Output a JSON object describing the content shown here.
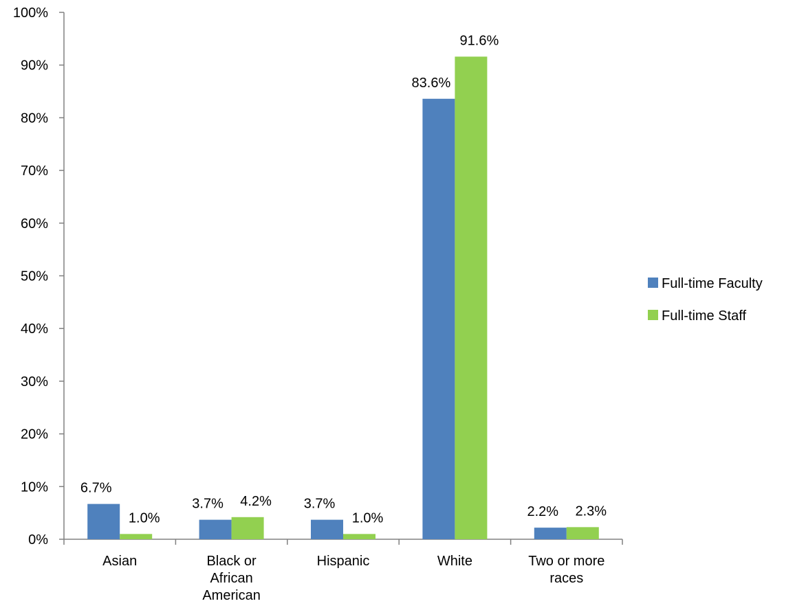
{
  "chart_data": {
    "type": "bar",
    "categories": [
      [
        "Asian"
      ],
      [
        "Black or",
        "African",
        "American"
      ],
      [
        "Hispanic"
      ],
      [
        "White"
      ],
      [
        "Two or more",
        "races"
      ]
    ],
    "series": [
      {
        "name": "Full-time Faculty",
        "color": "#4F81BD",
        "values": [
          6.7,
          3.7,
          3.7,
          83.6,
          2.2
        ],
        "labels": [
          "6.7%",
          "3.7%",
          "3.7%",
          "83.6%",
          "2.2%"
        ]
      },
      {
        "name": "Full-time Staff",
        "color": "#92D050",
        "values": [
          1.0,
          4.2,
          1.0,
          91.6,
          2.3
        ],
        "labels": [
          "1.0%",
          "4.2%",
          "1.0%",
          "91.6%",
          "2.3%"
        ]
      }
    ],
    "ylim": [
      0,
      100
    ],
    "yticks": [
      "0%",
      "10%",
      "20%",
      "30%",
      "40%",
      "50%",
      "60%",
      "70%",
      "80%",
      "90%",
      "100%"
    ],
    "grid": false,
    "legend_position": "right",
    "title": "",
    "xlabel": "",
    "ylabel": ""
  }
}
